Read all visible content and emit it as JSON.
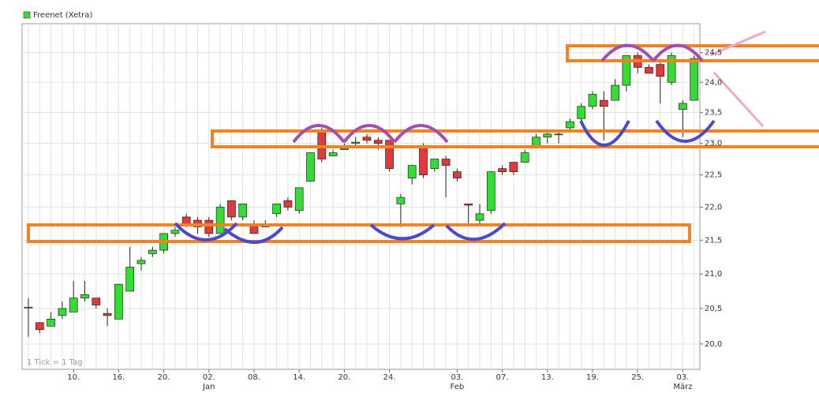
{
  "chart_data": {
    "type": "candlestick",
    "footnote": "1 Tick = 1 Tag",
    "log_scale": true,
    "grid": true,
    "categories": [
      null,
      null,
      null,
      null,
      "10.",
      null,
      null,
      null,
      "16.",
      null,
      null,
      null,
      "20.",
      null,
      null,
      null,
      "02.",
      null,
      null,
      null,
      "08.",
      null,
      null,
      null,
      "14.",
      null,
      null,
      null,
      "20.",
      null,
      null,
      null,
      "24.",
      null,
      null,
      null,
      null,
      null,
      "03.",
      null,
      null,
      null,
      "07.",
      null,
      null,
      null,
      "13.",
      null,
      null,
      null,
      "19.",
      null,
      null,
      null,
      "25.",
      null,
      null,
      null,
      "03.",
      null
    ],
    "sublabels": [
      null,
      null,
      null,
      null,
      null,
      null,
      null,
      null,
      null,
      null,
      null,
      null,
      null,
      null,
      null,
      null,
      "Jan",
      null,
      null,
      null,
      null,
      null,
      null,
      null,
      null,
      null,
      null,
      null,
      null,
      null,
      null,
      null,
      null,
      null,
      null,
      null,
      null,
      null,
      "Feb",
      null,
      null,
      null,
      null,
      null,
      null,
      null,
      null,
      null,
      null,
      null,
      null,
      null,
      null,
      null,
      null,
      null,
      null,
      null,
      "März",
      null
    ],
    "series": [
      {
        "name": "Freenet (Xetra)",
        "color": "#33dd33",
        "down_color": "#e03a3a",
        "open": [
          20.52,
          20.3,
          20.25,
          20.4,
          20.45,
          20.65,
          20.65,
          20.43,
          20.35,
          20.75,
          21.15,
          21.3,
          21.35,
          21.6,
          21.85,
          21.8,
          21.8,
          21.6,
          22.1,
          21.85,
          21.75,
          21.7,
          21.9,
          22.1,
          21.95,
          22.4,
          23.2,
          22.8,
          22.9,
          23.0,
          23.1,
          23.05,
          23.05,
          22.05,
          22.45,
          22.95,
          22.6,
          22.75,
          22.55,
          22.05,
          21.8,
          21.95,
          22.6,
          22.7,
          22.7,
          22.95,
          23.1,
          23.15,
          23.25,
          23.4,
          23.6,
          23.7,
          23.7,
          23.95,
          24.45,
          24.25,
          24.3,
          24.0,
          23.55,
          23.7
        ],
        "high": [
          20.65,
          20.3,
          20.45,
          20.6,
          20.9,
          20.9,
          20.65,
          20.5,
          20.85,
          21.4,
          21.25,
          21.4,
          21.6,
          21.7,
          21.9,
          21.85,
          21.85,
          22.05,
          22.1,
          22.05,
          21.8,
          21.8,
          22.05,
          22.15,
          22.3,
          22.85,
          23.25,
          22.9,
          23.0,
          23.1,
          23.15,
          23.1,
          23.05,
          22.2,
          22.65,
          23.0,
          22.75,
          22.8,
          22.6,
          22.05,
          22.05,
          22.55,
          22.65,
          22.7,
          22.9,
          23.15,
          23.2,
          23.2,
          23.4,
          23.65,
          23.85,
          23.85,
          24.05,
          24.45,
          24.5,
          24.3,
          24.35,
          24.5,
          23.7,
          24.45
        ],
        "low": [
          20.1,
          20.15,
          20.25,
          20.35,
          20.45,
          20.6,
          20.5,
          20.25,
          20.35,
          20.75,
          21.05,
          21.25,
          21.3,
          21.55,
          21.7,
          21.6,
          21.55,
          21.6,
          21.8,
          21.8,
          21.6,
          21.7,
          21.85,
          21.95,
          21.9,
          22.4,
          22.7,
          22.8,
          22.9,
          22.95,
          23.0,
          22.9,
          22.55,
          21.7,
          22.35,
          22.45,
          22.55,
          22.15,
          22.4,
          21.75,
          21.75,
          21.9,
          22.5,
          22.5,
          22.7,
          22.95,
          23.0,
          23.0,
          23.2,
          23.35,
          23.55,
          23.05,
          23.7,
          23.85,
          24.15,
          24.15,
          23.65,
          23.95,
          23.1,
          23.7
        ],
        "close": [
          20.52,
          20.2,
          20.35,
          20.5,
          20.65,
          20.7,
          20.55,
          20.4,
          20.85,
          21.1,
          21.2,
          21.35,
          21.6,
          21.65,
          21.75,
          21.7,
          21.6,
          22.0,
          21.85,
          22.05,
          21.6,
          21.72,
          22.05,
          22.0,
          22.3,
          22.85,
          22.75,
          22.85,
          22.92,
          23.02,
          23.05,
          23.0,
          22.6,
          22.15,
          22.65,
          22.5,
          22.75,
          22.65,
          22.45,
          22.03,
          21.9,
          22.55,
          22.55,
          22.55,
          22.85,
          23.1,
          23.15,
          23.15,
          23.35,
          23.6,
          23.8,
          23.6,
          23.95,
          24.45,
          24.25,
          24.15,
          24.1,
          24.45,
          23.65,
          24.4
        ]
      }
    ],
    "ylim": [
      19.65,
      25.0
    ],
    "yticks": [
      {
        "value": 20,
        "label": "20,0"
      },
      {
        "value": 20.5,
        "label": "20,5"
      },
      {
        "value": 21,
        "label": "21,0"
      },
      {
        "value": 21.5,
        "label": "21,5"
      },
      {
        "value": 22,
        "label": "22,0"
      },
      {
        "value": 22.5,
        "label": "22,5"
      },
      {
        "value": 23,
        "label": "23,0"
      },
      {
        "value": 23.5,
        "label": "23,5"
      },
      {
        "value": 24,
        "label": "24,0"
      },
      {
        "value": 24.5,
        "label": "24,5"
      }
    ]
  }
}
